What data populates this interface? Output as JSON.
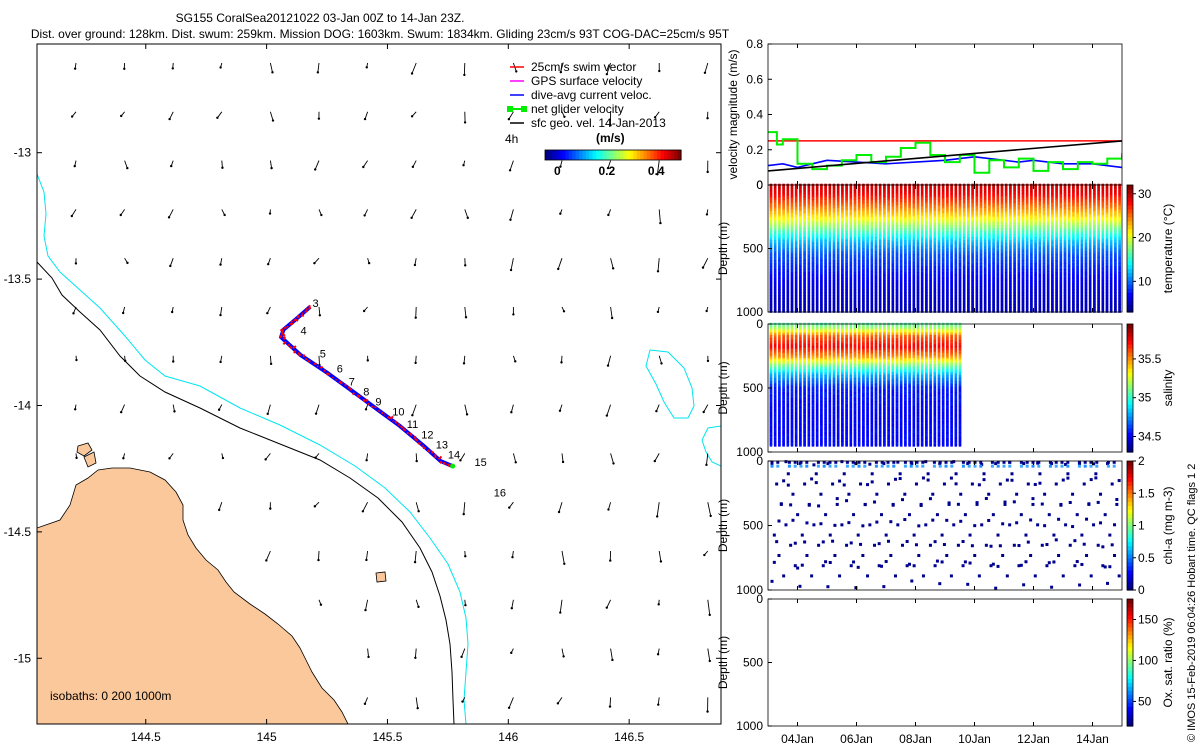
{
  "header": {
    "title": "SG155 CoralSea20121022 03-Jan 00Z to 14-Jan 23Z.",
    "subtitle": "Dist. over ground: 128km. Dist. swum: 259km. Mission DOG: 1603km. Swum: 1834km. Gliding 23cm/s 93T COG-DAC=25cm/s 95T"
  },
  "credit": "© IMOS 15-Feb-2019 06:04:26 Hobart time. QC flags 1  2",
  "map": {
    "lon_ticks": [
      "144.5",
      "145",
      "145.5",
      "146",
      "146.5"
    ],
    "lat_ticks": [
      "-13",
      "-13.5",
      "-14",
      "-14.5",
      "-15"
    ],
    "lon_range": [
      144.05,
      146.88
    ],
    "lat_range": [
      -15.26,
      -12.57
    ],
    "legend": [
      {
        "label": "25cm/s swim vector",
        "color": "#ff0000"
      },
      {
        "label": "GPS surface velocity",
        "color": "#ff00ff"
      },
      {
        "label": "dive-avg current veloc.",
        "color": "#0000ff"
      },
      {
        "label": "net glider velocity",
        "color": "#00ee00"
      },
      {
        "label": "sfc geo. vel. 14-Jan-2013",
        "color": "#000000"
      }
    ],
    "colorbar": {
      "unit": "(m/s)",
      "time_label": "4h",
      "ticks": [
        "0",
        "0.2",
        "0.4"
      ],
      "range": [
        -0.05,
        0.5
      ]
    },
    "isobath_label": "isobaths: 0   200  1000m",
    "land_color": "#fbc89c",
    "isobath_200_color": "#00e5ee",
    "day_labels": [
      {
        "label": "3",
        "lon": 145.19,
        "lat": -13.61
      },
      {
        "label": "4",
        "lon": 145.14,
        "lat": -13.72
      },
      {
        "label": "5",
        "lon": 145.22,
        "lat": -13.81
      },
      {
        "label": "6",
        "lon": 145.29,
        "lat": -13.87
      },
      {
        "label": "7",
        "lon": 145.34,
        "lat": -13.92
      },
      {
        "label": "8",
        "lon": 145.4,
        "lat": -13.96
      },
      {
        "label": "9",
        "lon": 145.45,
        "lat": -14.0
      },
      {
        "label": "10",
        "lon": 145.52,
        "lat": -14.04
      },
      {
        "label": "11",
        "lon": 145.58,
        "lat": -14.09
      },
      {
        "label": "12",
        "lon": 145.64,
        "lat": -14.13
      },
      {
        "label": "13",
        "lon": 145.7,
        "lat": -14.17
      },
      {
        "label": "14",
        "lon": 145.75,
        "lat": -14.21
      },
      {
        "label": "15",
        "lon": 145.86,
        "lat": -14.24
      },
      {
        "label": "16",
        "lon": 145.94,
        "lat": -14.36
      }
    ]
  },
  "chart_data": [
    {
      "type": "line",
      "ylabel": "velocity magnitude (m/s)",
      "ylim": [
        0,
        0.8
      ],
      "yticks": [
        "0",
        "0.2",
        "0.4",
        "0.6",
        "0.8"
      ],
      "series": [
        {
          "color": "#ff0000",
          "x": [
            3.0,
            15.0
          ],
          "values": [
            0.25,
            0.25
          ]
        },
        {
          "color": "#0000ff",
          "x": [
            3.0,
            3.5,
            4.0,
            4.5,
            5.0,
            6.0,
            7.0,
            8.0,
            9.0,
            10.0,
            11.0,
            11.5,
            12.0,
            13.0,
            14.0,
            15.0
          ],
          "values": [
            0.11,
            0.12,
            0.1,
            0.12,
            0.14,
            0.13,
            0.12,
            0.13,
            0.14,
            0.16,
            0.14,
            0.13,
            0.14,
            0.12,
            0.12,
            0.1
          ]
        },
        {
          "color": "#00ee00",
          "x": [
            3.0,
            3.3,
            3.5,
            4.0,
            4.5,
            5.0,
            5.5,
            6.0,
            6.5,
            7.0,
            7.5,
            8.0,
            8.5,
            9.0,
            9.5,
            10.0,
            10.5,
            11.0,
            11.5,
            12.0,
            12.5,
            13.0,
            13.5,
            14.0,
            14.5,
            15.0
          ],
          "values": [
            0.3,
            0.23,
            0.26,
            0.12,
            0.09,
            0.11,
            0.14,
            0.17,
            0.13,
            0.16,
            0.21,
            0.24,
            0.17,
            0.13,
            0.17,
            0.07,
            0.14,
            0.1,
            0.15,
            0.08,
            0.13,
            0.09,
            0.13,
            0.12,
            0.15,
            0.18
          ]
        },
        {
          "color": "#000000",
          "x": [
            3.0,
            15.0
          ],
          "values": [
            0.08,
            0.25
          ]
        }
      ]
    },
    {
      "type": "scatter",
      "variable": "temperature",
      "ylabel": "Depth (m)",
      "yticks": [
        "0",
        "500",
        "1000"
      ],
      "ylim": [
        1000,
        0
      ],
      "xlim": [
        3.0,
        15.0
      ],
      "x_end": 15.0,
      "depth_end": 1000,
      "colorbar_label": "temperature (°C)",
      "cbar_ticks": [
        "10",
        "20",
        "30"
      ],
      "cbar_range": [
        3,
        32
      ],
      "profile": [
        [
          0,
          30
        ],
        [
          60,
          29
        ],
        [
          150,
          26
        ],
        [
          250,
          22
        ],
        [
          350,
          17
        ],
        [
          450,
          12
        ],
        [
          550,
          9
        ],
        [
          700,
          7
        ],
        [
          850,
          5.5
        ],
        [
          1000,
          4.5
        ]
      ]
    },
    {
      "type": "scatter",
      "variable": "salinity",
      "ylabel": "Depth (m)",
      "yticks": [
        "0",
        "500",
        "1000"
      ],
      "ylim": [
        1000,
        0
      ],
      "xlim": [
        3.0,
        15.0
      ],
      "x_end": 9.5,
      "depth_end": 950,
      "colorbar_label": "salinity",
      "cbar_ticks": [
        "34.5",
        "35",
        "35.5"
      ],
      "cbar_range": [
        34.3,
        35.95
      ],
      "profile": [
        [
          0,
          35.05
        ],
        [
          40,
          35.2
        ],
        [
          100,
          35.6
        ],
        [
          180,
          35.75
        ],
        [
          260,
          35.5
        ],
        [
          330,
          35.1
        ],
        [
          400,
          34.8
        ],
        [
          500,
          34.55
        ],
        [
          700,
          34.5
        ],
        [
          950,
          34.52
        ]
      ]
    },
    {
      "type": "scatter",
      "variable": "chl-a",
      "ylabel": "Depth (m)",
      "yticks": [
        "0",
        "500",
        "1000"
      ],
      "ylim": [
        1000,
        0
      ],
      "xlim": [
        3.0,
        15.0
      ],
      "colorbar_label": "chl-a (mg m-3)",
      "cbar_ticks": [
        "0",
        "0.5",
        "1",
        "1.5",
        "2"
      ],
      "cbar_range": [
        0,
        2
      ]
    },
    {
      "type": "scatter",
      "variable": "oxygen",
      "ylabel": "Depth (m)",
      "yticks": [
        "0",
        "500",
        "1000"
      ],
      "ylim": [
        1000,
        0
      ],
      "xlim": [
        3.0,
        15.0
      ],
      "colorbar_label": "Ox. sat. ratio (%)",
      "cbar_ticks": [
        "50",
        "100",
        "150"
      ],
      "cbar_range": [
        20,
        175
      ]
    }
  ],
  "time_axis": {
    "xlim": [
      3.0,
      15.0
    ],
    "ticks": [
      {
        "label": "04Jan",
        "x": 4
      },
      {
        "label": "06Jan",
        "x": 6
      },
      {
        "label": "08Jan",
        "x": 8
      },
      {
        "label": "10Jan",
        "x": 10
      },
      {
        "label": "12Jan",
        "x": 12
      },
      {
        "label": "14Jan",
        "x": 14
      }
    ]
  }
}
